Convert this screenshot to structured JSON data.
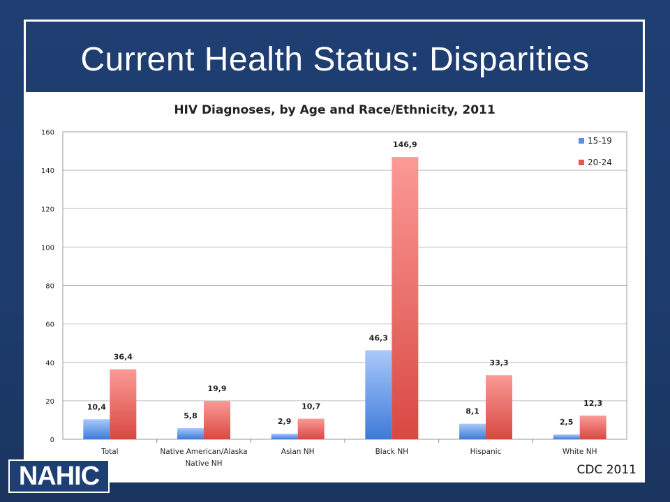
{
  "slide": {
    "title": "Current Health Status: Disparities",
    "logo_text": "NAHIC",
    "source": "CDC 2011"
  },
  "colors": {
    "background": "#1f3f73",
    "series_15_19": "#5b8fe0",
    "series_20_24": "#e05a55"
  },
  "chart_data": {
    "type": "bar",
    "title": "HIV Diagnoses, by Age and Race/Ethnicity, 2011",
    "categories": [
      [
        "Total"
      ],
      [
        "Native American/Alaska",
        "Native NH"
      ],
      [
        "Asian NH"
      ],
      [
        "Black NH"
      ],
      [
        "Hispanic"
      ],
      [
        "White NH"
      ]
    ],
    "series": [
      {
        "name": "15-19",
        "values": [
          10.4,
          5.8,
          2.9,
          46.3,
          8.1,
          2.5
        ],
        "labels": [
          "10,4",
          "5,8",
          "2,9",
          "46,3",
          "8,1",
          "2,5"
        ]
      },
      {
        "name": "20-24",
        "values": [
          36.4,
          19.9,
          10.7,
          146.9,
          33.3,
          12.3
        ],
        "labels": [
          "36,4",
          "19,9",
          "10,7",
          "146,9",
          "33,3",
          "12,3"
        ]
      }
    ],
    "ylim": [
      0,
      160
    ],
    "yticks": [
      0,
      20,
      40,
      60,
      80,
      100,
      120,
      140,
      160
    ],
    "grid": true,
    "legend": "top-right"
  }
}
